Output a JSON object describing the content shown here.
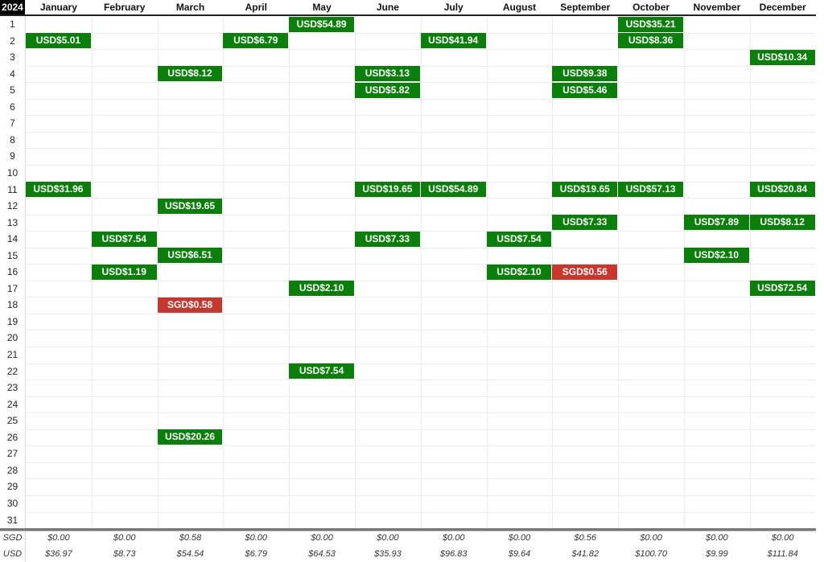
{
  "year": "2024",
  "months": [
    "January",
    "February",
    "March",
    "April",
    "May",
    "June",
    "July",
    "August",
    "September",
    "October",
    "November",
    "December"
  ],
  "days": [
    "1",
    "2",
    "3",
    "4",
    "5",
    "6",
    "7",
    "8",
    "9",
    "10",
    "11",
    "12",
    "13",
    "14",
    "15",
    "16",
    "17",
    "18",
    "19",
    "20",
    "21",
    "22",
    "23",
    "24",
    "25",
    "26",
    "27",
    "28",
    "29",
    "30",
    "31"
  ],
  "entries": [
    {
      "month": 0,
      "day": 2,
      "label": "USD$5.01",
      "currency": "USD"
    },
    {
      "month": 0,
      "day": 11,
      "label": "USD$31.96",
      "currency": "USD"
    },
    {
      "month": 1,
      "day": 14,
      "label": "USD$7.54",
      "currency": "USD"
    },
    {
      "month": 1,
      "day": 16,
      "label": "USD$1.19",
      "currency": "USD"
    },
    {
      "month": 2,
      "day": 4,
      "label": "USD$8.12",
      "currency": "USD"
    },
    {
      "month": 2,
      "day": 12,
      "label": "USD$19.65",
      "currency": "USD"
    },
    {
      "month": 2,
      "day": 15,
      "label": "USD$6.51",
      "currency": "USD"
    },
    {
      "month": 2,
      "day": 18,
      "label": "SGD$0.58",
      "currency": "SGD"
    },
    {
      "month": 2,
      "day": 26,
      "label": "USD$20.26",
      "currency": "USD"
    },
    {
      "month": 3,
      "day": 2,
      "label": "USD$6.79",
      "currency": "USD"
    },
    {
      "month": 4,
      "day": 1,
      "label": "USD$54.89",
      "currency": "USD"
    },
    {
      "month": 4,
      "day": 17,
      "label": "USD$2.10",
      "currency": "USD"
    },
    {
      "month": 4,
      "day": 22,
      "label": "USD$7.54",
      "currency": "USD"
    },
    {
      "month": 5,
      "day": 4,
      "label": "USD$3.13",
      "currency": "USD"
    },
    {
      "month": 5,
      "day": 5,
      "label": "USD$5.82",
      "currency": "USD"
    },
    {
      "month": 5,
      "day": 11,
      "label": "USD$19.65",
      "currency": "USD"
    },
    {
      "month": 5,
      "day": 14,
      "label": "USD$7.33",
      "currency": "USD"
    },
    {
      "month": 6,
      "day": 2,
      "label": "USD$41.94",
      "currency": "USD"
    },
    {
      "month": 6,
      "day": 11,
      "label": "USD$54.89",
      "currency": "USD"
    },
    {
      "month": 7,
      "day": 14,
      "label": "USD$7.54",
      "currency": "USD"
    },
    {
      "month": 7,
      "day": 16,
      "label": "USD$2.10",
      "currency": "USD"
    },
    {
      "month": 8,
      "day": 4,
      "label": "USD$9.38",
      "currency": "USD"
    },
    {
      "month": 8,
      "day": 5,
      "label": "USD$5.46",
      "currency": "USD"
    },
    {
      "month": 8,
      "day": 11,
      "label": "USD$19.65",
      "currency": "USD"
    },
    {
      "month": 8,
      "day": 13,
      "label": "USD$7.33",
      "currency": "USD"
    },
    {
      "month": 8,
      "day": 16,
      "label": "SGD$0.56",
      "currency": "SGD"
    },
    {
      "month": 9,
      "day": 1,
      "label": "USD$35.21",
      "currency": "USD"
    },
    {
      "month": 9,
      "day": 2,
      "label": "USD$8.36",
      "currency": "USD"
    },
    {
      "month": 9,
      "day": 11,
      "label": "USD$57.13",
      "currency": "USD"
    },
    {
      "month": 10,
      "day": 13,
      "label": "USD$7.89",
      "currency": "USD"
    },
    {
      "month": 10,
      "day": 15,
      "label": "USD$2.10",
      "currency": "USD"
    },
    {
      "month": 11,
      "day": 3,
      "label": "USD$10.34",
      "currency": "USD"
    },
    {
      "month": 11,
      "day": 11,
      "label": "USD$20.84",
      "currency": "USD"
    },
    {
      "month": 11,
      "day": 13,
      "label": "USD$8.12",
      "currency": "USD"
    },
    {
      "month": 11,
      "day": 17,
      "label": "USD$72.54",
      "currency": "USD"
    }
  ],
  "totals": {
    "sgd_label": "SGD",
    "usd_label": "USD",
    "sgd": [
      "$0.00",
      "$0.00",
      "$0.58",
      "$0.00",
      "$0.00",
      "$0.00",
      "$0.00",
      "$0.00",
      "$0.56",
      "$0.00",
      "$0.00",
      "$0.00"
    ],
    "usd": [
      "$36.97",
      "$8.73",
      "$54.54",
      "$6.79",
      "$64.53",
      "$35.93",
      "$96.83",
      "$9.64",
      "$41.82",
      "$100.70",
      "$9.99",
      "$111.84"
    ]
  },
  "colors": {
    "usd": "#0a7f0a",
    "sgd": "#c9372c",
    "header_bg": "#000000"
  }
}
